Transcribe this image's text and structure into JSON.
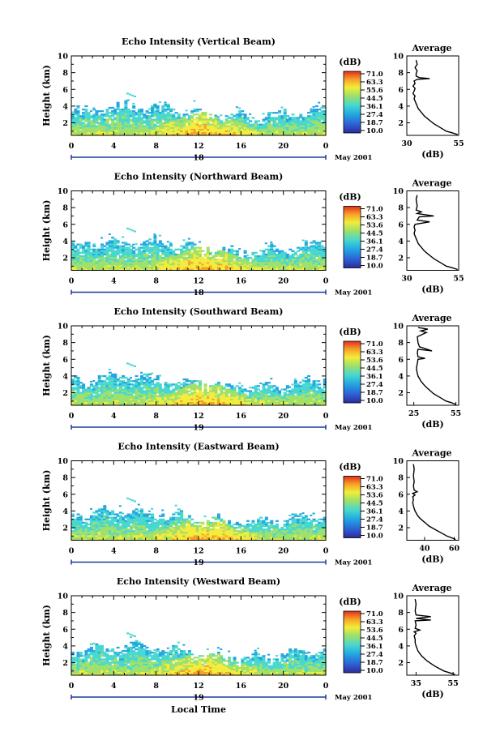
{
  "chart_data": [
    {
      "type": "heatmap",
      "title": "Echo Intensity (Vertical Beam)",
      "ylabel": "Height (km)",
      "x_ticks": [
        "0",
        "4",
        "8",
        "12",
        "16",
        "20",
        "0"
      ],
      "y_ticks": [
        "2",
        "4",
        "6",
        "8",
        "10"
      ],
      "xlim": [
        0,
        24
      ],
      "ylim": [
        0.5,
        10
      ],
      "date_label": "18",
      "month_label": "May 2001",
      "colorbar": {
        "unit": "(dB)",
        "ticks": [
          "71.0",
          "63.3",
          "55.6",
          "44.5",
          "36.1",
          "27.4",
          "18.7",
          "10.0"
        ]
      },
      "profile": {
        "title": "Average",
        "xlabel": "(dB)",
        "x_ticks": [
          "30",
          "55"
        ],
        "xlim": [
          30,
          55
        ],
        "y_ticks": [
          "2",
          "4",
          "6",
          "8",
          "10"
        ],
        "points": [
          [
            54.5,
            0.6
          ],
          [
            52,
            0.8
          ],
          [
            49,
            1.0
          ],
          [
            47,
            1.3
          ],
          [
            45,
            1.6
          ],
          [
            43,
            1.9
          ],
          [
            41.5,
            2.2
          ],
          [
            40,
            2.5
          ],
          [
            38.5,
            2.8
          ],
          [
            37.5,
            3.1
          ],
          [
            36.5,
            3.4
          ],
          [
            35.5,
            3.7
          ],
          [
            35,
            4.0
          ],
          [
            34.5,
            4.3
          ],
          [
            34,
            4.6
          ],
          [
            33.5,
            4.9
          ],
          [
            34,
            5.2
          ],
          [
            33,
            5.5
          ],
          [
            33.5,
            5.8
          ],
          [
            34,
            6.1
          ],
          [
            33,
            6.4
          ],
          [
            34,
            6.7
          ],
          [
            33.5,
            7.0
          ],
          [
            35,
            7.2
          ],
          [
            41,
            7.3
          ],
          [
            36,
            7.4
          ],
          [
            34.5,
            7.6
          ],
          [
            34.5,
            7.9
          ],
          [
            35,
            8.2
          ],
          [
            34,
            8.6
          ],
          [
            35,
            9.0
          ],
          [
            34.5,
            9.5
          ]
        ]
      }
    },
    {
      "type": "heatmap",
      "title": "Echo Intensity (Northward Beam)",
      "ylabel": "Height (km)",
      "x_ticks": [
        "0",
        "4",
        "8",
        "12",
        "16",
        "20",
        "0"
      ],
      "y_ticks": [
        "2",
        "4",
        "6",
        "8",
        "10"
      ],
      "xlim": [
        0,
        24
      ],
      "ylim": [
        0.5,
        10
      ],
      "date_label": "18",
      "month_label": "May 2001",
      "colorbar": {
        "unit": "(dB)",
        "ticks": [
          "71.0",
          "63.3",
          "53.6",
          "44.5",
          "36.1",
          "27.4",
          "18.7",
          "10.0"
        ]
      },
      "profile": {
        "title": "Average",
        "xlabel": "(dB)",
        "x_ticks": [
          "30",
          "55"
        ],
        "xlim": [
          30,
          55
        ],
        "y_ticks": [
          "2",
          "4",
          "6",
          "8",
          "10"
        ],
        "points": [
          [
            54.5,
            0.6
          ],
          [
            52,
            0.8
          ],
          [
            49,
            1.0
          ],
          [
            47,
            1.3
          ],
          [
            45,
            1.6
          ],
          [
            43,
            1.9
          ],
          [
            41.5,
            2.2
          ],
          [
            40,
            2.5
          ],
          [
            38.5,
            2.8
          ],
          [
            37.5,
            3.1
          ],
          [
            36.5,
            3.4
          ],
          [
            35.5,
            3.7
          ],
          [
            35,
            4.0
          ],
          [
            34.5,
            4.3
          ],
          [
            34,
            4.6
          ],
          [
            33.5,
            4.9
          ],
          [
            34,
            5.3
          ],
          [
            33.5,
            5.7
          ],
          [
            34,
            6.0
          ],
          [
            41,
            6.3
          ],
          [
            35,
            6.5
          ],
          [
            36,
            6.9
          ],
          [
            43,
            7.0
          ],
          [
            35,
            7.3
          ],
          [
            37,
            7.5
          ],
          [
            34.5,
            7.7
          ],
          [
            35,
            8.2
          ],
          [
            34.5,
            9.0
          ],
          [
            35,
            9.5
          ]
        ]
      }
    },
    {
      "type": "heatmap",
      "title": "Echo Intensity (Southward Beam)",
      "ylabel": "Height (km)",
      "x_ticks": [
        "0",
        "4",
        "8",
        "12",
        "16",
        "20",
        "0"
      ],
      "y_ticks": [
        "2",
        "4",
        "6",
        "8",
        "10"
      ],
      "xlim": [
        0,
        24
      ],
      "ylim": [
        0.5,
        10
      ],
      "date_label": "19",
      "month_label": "May 2001",
      "colorbar": {
        "unit": "(dB)",
        "ticks": [
          "71.0",
          "63.3",
          "53.6",
          "44.5",
          "36.1",
          "27.4",
          "18.7",
          "10.0"
        ]
      },
      "profile": {
        "title": "Average",
        "xlabel": "(dB)",
        "x_ticks": [
          "25",
          "55"
        ],
        "xlim": [
          20,
          57
        ],
        "y_ticks": [
          "2",
          "4",
          "6",
          "8",
          "10"
        ],
        "points": [
          [
            55,
            0.6
          ],
          [
            52,
            0.8
          ],
          [
            48,
            1.0
          ],
          [
            45,
            1.3
          ],
          [
            42,
            1.6
          ],
          [
            39,
            1.9
          ],
          [
            37,
            2.2
          ],
          [
            35,
            2.5
          ],
          [
            33,
            2.8
          ],
          [
            31.5,
            3.1
          ],
          [
            30,
            3.4
          ],
          [
            29,
            3.7
          ],
          [
            28,
            4.0
          ],
          [
            27.5,
            4.3
          ],
          [
            27,
            4.7
          ],
          [
            27,
            5.1
          ],
          [
            27.5,
            5.5
          ],
          [
            28,
            6.0
          ],
          [
            33,
            6.1
          ],
          [
            28,
            6.3
          ],
          [
            27.5,
            6.8
          ],
          [
            28,
            7.2
          ],
          [
            38,
            7.0
          ],
          [
            29,
            7.5
          ],
          [
            28,
            8.0
          ],
          [
            27.5,
            8.7
          ],
          [
            34,
            9.2
          ],
          [
            30,
            9.4
          ],
          [
            35,
            9.6
          ],
          [
            28,
            9.8
          ]
        ]
      }
    },
    {
      "type": "heatmap",
      "title": "Echo Intensity (Eastward Beam)",
      "ylabel": "Height (km)",
      "x_ticks": [
        "0",
        "4",
        "8",
        "12",
        "16",
        "20",
        "0"
      ],
      "y_ticks": [
        "2",
        "4",
        "6",
        "8",
        "10"
      ],
      "xlim": [
        0,
        24
      ],
      "ylim": [
        0.5,
        10
      ],
      "date_label": "19",
      "month_label": "May 2001",
      "colorbar": {
        "unit": "(dB)",
        "ticks": [
          "71.0",
          "63.3",
          "53.6",
          "44.5",
          "36.1",
          "27.4",
          "18.7",
          "10.0"
        ]
      },
      "profile": {
        "title": "Average",
        "xlabel": "(dB)",
        "x_ticks": [
          "40",
          "60"
        ],
        "xlim": [
          28,
          63
        ],
        "y_ticks": [
          "2",
          "4",
          "6",
          "8",
          "10"
        ],
        "points": [
          [
            61,
            0.6
          ],
          [
            58,
            0.8
          ],
          [
            55,
            1.0
          ],
          [
            52,
            1.3
          ],
          [
            49,
            1.6
          ],
          [
            46,
            1.9
          ],
          [
            43,
            2.2
          ],
          [
            41,
            2.5
          ],
          [
            39,
            2.8
          ],
          [
            37,
            3.1
          ],
          [
            35.5,
            3.4
          ],
          [
            34.5,
            3.7
          ],
          [
            33.5,
            4.0
          ],
          [
            33,
            4.3
          ],
          [
            32.5,
            4.6
          ],
          [
            32,
            5.0
          ],
          [
            32.5,
            5.4
          ],
          [
            32,
            5.7
          ],
          [
            33.5,
            5.9
          ],
          [
            32,
            6.1
          ],
          [
            35,
            6.3
          ],
          [
            33,
            6.5
          ],
          [
            32.5,
            7.0
          ],
          [
            33,
            7.5
          ],
          [
            32.5,
            8.2
          ],
          [
            33,
            9.0
          ],
          [
            32.5,
            9.6
          ]
        ]
      }
    },
    {
      "type": "heatmap",
      "title": "Echo Intensity (Westward Beam)",
      "ylabel": "Height (km)",
      "xlabel": "Local Time",
      "x_ticks": [
        "0",
        "4",
        "8",
        "12",
        "16",
        "20",
        "0"
      ],
      "y_ticks": [
        "2",
        "4",
        "6",
        "8",
        "10"
      ],
      "xlim": [
        0,
        24
      ],
      "ylim": [
        0.5,
        10
      ],
      "date_label": "19",
      "month_label": "May 2001",
      "colorbar": {
        "unit": "(dB)",
        "ticks": [
          "71.0",
          "63.3",
          "53.6",
          "44.5",
          "36.1",
          "27.4",
          "18.7",
          "10.0"
        ]
      },
      "profile": {
        "title": "Average",
        "xlabel": "(dB)",
        "x_ticks": [
          "35",
          "55"
        ],
        "xlim": [
          30,
          58
        ],
        "y_ticks": [
          "2",
          "4",
          "6",
          "8",
          "10"
        ],
        "points": [
          [
            56,
            0.6
          ],
          [
            53,
            0.8
          ],
          [
            50,
            1.0
          ],
          [
            47.5,
            1.3
          ],
          [
            45,
            1.6
          ],
          [
            43,
            1.9
          ],
          [
            41,
            2.2
          ],
          [
            39.5,
            2.5
          ],
          [
            38,
            2.8
          ],
          [
            37,
            3.1
          ],
          [
            36,
            3.4
          ],
          [
            35.5,
            3.7
          ],
          [
            35,
            4.0
          ],
          [
            34.5,
            4.4
          ],
          [
            34.5,
            4.8
          ],
          [
            34,
            5.2
          ],
          [
            35,
            5.5
          ],
          [
            34,
            5.7
          ],
          [
            37,
            5.9
          ],
          [
            34.5,
            6.1
          ],
          [
            35,
            6.5
          ],
          [
            34.5,
            7.0
          ],
          [
            43,
            7.1
          ],
          [
            35,
            7.3
          ],
          [
            43,
            7.5
          ],
          [
            35,
            7.7
          ],
          [
            34.5,
            8.2
          ],
          [
            35,
            9.0
          ],
          [
            34.5,
            9.6
          ]
        ]
      }
    }
  ],
  "figure": {
    "xlabel": "Local Time"
  },
  "colors": {
    "scale": [
      "#2c2c9a",
      "#2f5fd6",
      "#21a6e0",
      "#47d7d0",
      "#9de06a",
      "#f3ec3a",
      "#f7a128",
      "#e42d1c"
    ]
  }
}
